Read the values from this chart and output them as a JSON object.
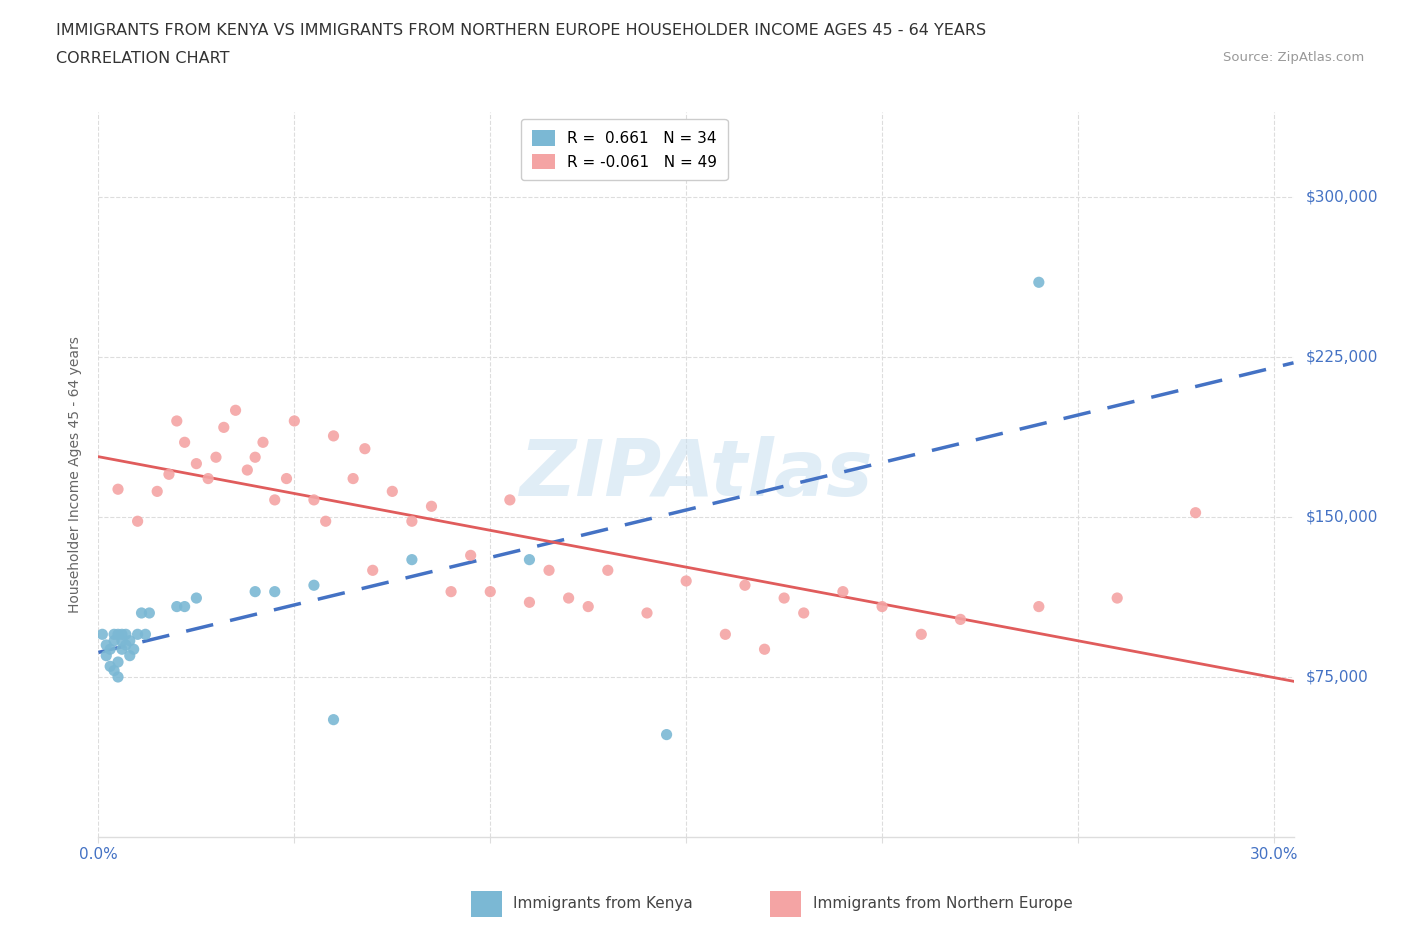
{
  "title_line1": "IMMIGRANTS FROM KENYA VS IMMIGRANTS FROM NORTHERN EUROPE HOUSEHOLDER INCOME AGES 45 - 64 YEARS",
  "title_line2": "CORRELATION CHART",
  "source_text": "Source: ZipAtlas.com",
  "ylabel": "Householder Income Ages 45 - 64 years",
  "xlim": [
    0.0,
    0.305
  ],
  "ylim": [
    0,
    340000
  ],
  "kenya_color": "#7bb8d4",
  "northern_color": "#f4a4a4",
  "kenya_R": 0.661,
  "kenya_N": 34,
  "northern_R": -0.061,
  "northern_N": 49,
  "kenya_scatter_x": [
    0.001,
    0.002,
    0.002,
    0.003,
    0.003,
    0.004,
    0.004,
    0.004,
    0.005,
    0.005,
    0.005,
    0.006,
    0.006,
    0.006,
    0.007,
    0.007,
    0.008,
    0.008,
    0.009,
    0.01,
    0.011,
    0.012,
    0.013,
    0.02,
    0.022,
    0.025,
    0.04,
    0.045,
    0.055,
    0.06,
    0.08,
    0.11,
    0.145,
    0.24
  ],
  "kenya_scatter_y": [
    95000,
    85000,
    90000,
    80000,
    88000,
    95000,
    78000,
    92000,
    95000,
    82000,
    75000,
    88000,
    95000,
    92000,
    90000,
    95000,
    85000,
    92000,
    88000,
    95000,
    105000,
    95000,
    105000,
    108000,
    108000,
    112000,
    115000,
    115000,
    118000,
    55000,
    130000,
    130000,
    48000,
    260000
  ],
  "northern_scatter_x": [
    0.005,
    0.01,
    0.015,
    0.018,
    0.02,
    0.022,
    0.025,
    0.028,
    0.03,
    0.032,
    0.035,
    0.038,
    0.04,
    0.042,
    0.045,
    0.048,
    0.05,
    0.055,
    0.058,
    0.06,
    0.065,
    0.068,
    0.07,
    0.075,
    0.08,
    0.085,
    0.09,
    0.095,
    0.1,
    0.105,
    0.11,
    0.115,
    0.12,
    0.125,
    0.13,
    0.14,
    0.15,
    0.16,
    0.165,
    0.17,
    0.175,
    0.18,
    0.19,
    0.2,
    0.21,
    0.22,
    0.24,
    0.26,
    0.28
  ],
  "northern_scatter_y": [
    163000,
    148000,
    162000,
    170000,
    195000,
    185000,
    175000,
    168000,
    178000,
    192000,
    200000,
    172000,
    178000,
    185000,
    158000,
    168000,
    195000,
    158000,
    148000,
    188000,
    168000,
    182000,
    125000,
    162000,
    148000,
    155000,
    115000,
    132000,
    115000,
    158000,
    110000,
    125000,
    112000,
    108000,
    125000,
    105000,
    120000,
    95000,
    118000,
    88000,
    112000,
    105000,
    115000,
    108000,
    95000,
    102000,
    108000,
    112000,
    152000
  ],
  "watermark": "ZIPAtlas",
  "grid_color": "#dddddd",
  "background_color": "#ffffff",
  "kenya_line_color": "#4472c4",
  "northern_line_color": "#e05c5c",
  "title_color": "#333333",
  "source_color": "#999999",
  "tick_color": "#4472c4",
  "ytick_vals": [
    75000,
    150000,
    225000,
    300000
  ],
  "ytick_labels": [
    "$75,000",
    "$150,000",
    "$225,000",
    "$300,000"
  ],
  "xtick_vals": [
    0.0,
    0.05,
    0.1,
    0.15,
    0.2,
    0.25,
    0.3
  ],
  "xtick_labels_show": [
    "0.0%",
    "",
    "",
    "",
    "",
    "",
    "30.0%"
  ],
  "title_fontsize": 11.5,
  "subtitle_fontsize": 11.5,
  "axis_label_fontsize": 10,
  "tick_fontsize": 11,
  "legend_fontsize": 11,
  "source_fontsize": 9.5
}
